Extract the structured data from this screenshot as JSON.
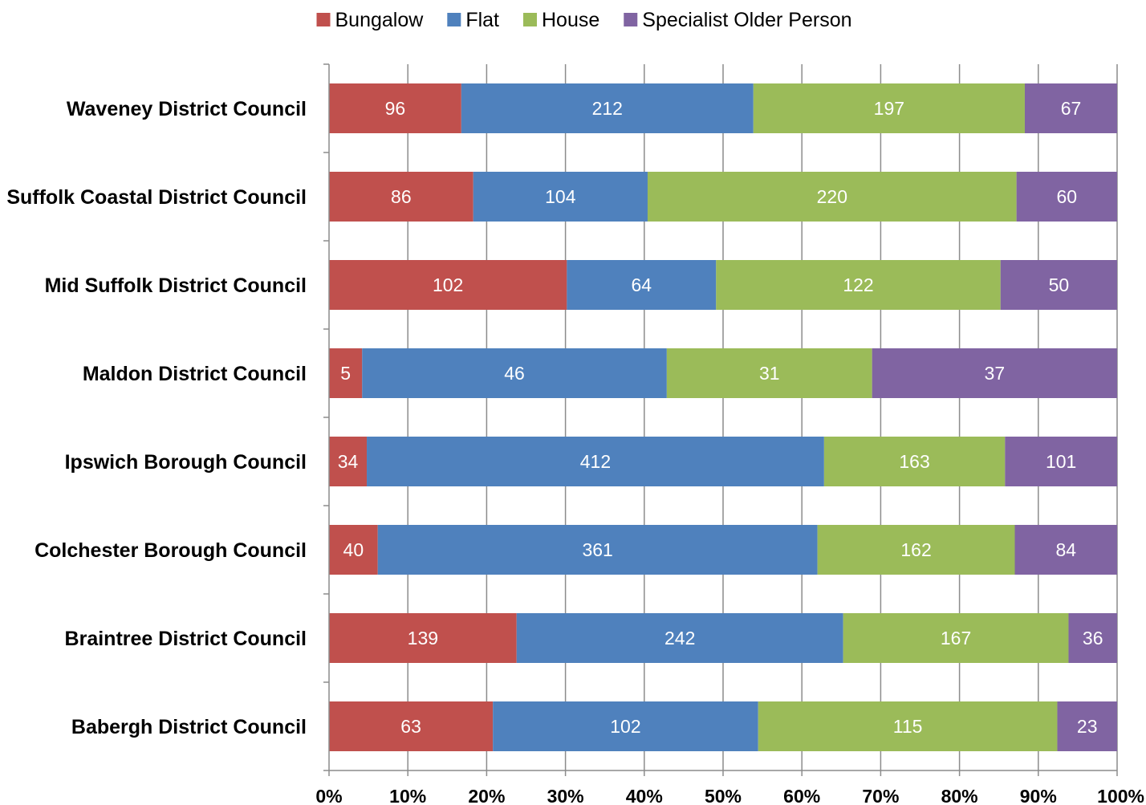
{
  "chart_data": {
    "type": "bar",
    "orientation": "horizontal",
    "stacking": "percent",
    "title": "",
    "xlabel": "",
    "ylabel": "",
    "categories": [
      "Waveney District Council",
      "Suffolk Coastal District Council",
      "Mid Suffolk District Council",
      "Maldon District Council",
      "Ipswich Borough Council",
      "Colchester Borough Council",
      "Braintree District Council",
      "Babergh District Council"
    ],
    "series": [
      {
        "name": "Bungalow",
        "color": "#c0504d",
        "values": [
          96,
          86,
          102,
          5,
          34,
          40,
          139,
          63
        ]
      },
      {
        "name": "Flat",
        "color": "#4f81bd",
        "values": [
          212,
          104,
          64,
          46,
          412,
          361,
          242,
          102
        ]
      },
      {
        "name": "House",
        "color": "#9bbb59",
        "values": [
          197,
          220,
          122,
          31,
          163,
          162,
          167,
          115
        ]
      },
      {
        "name": "Specialist Older Person",
        "color": "#8064a2",
        "values": [
          67,
          60,
          50,
          37,
          101,
          84,
          36,
          23
        ]
      }
    ],
    "x_ticks": [
      "0%",
      "10%",
      "20%",
      "30%",
      "40%",
      "50%",
      "60%",
      "70%",
      "80%",
      "90%",
      "100%"
    ],
    "xlim": [
      0,
      1
    ],
    "grid": true,
    "legend_position": "top"
  }
}
